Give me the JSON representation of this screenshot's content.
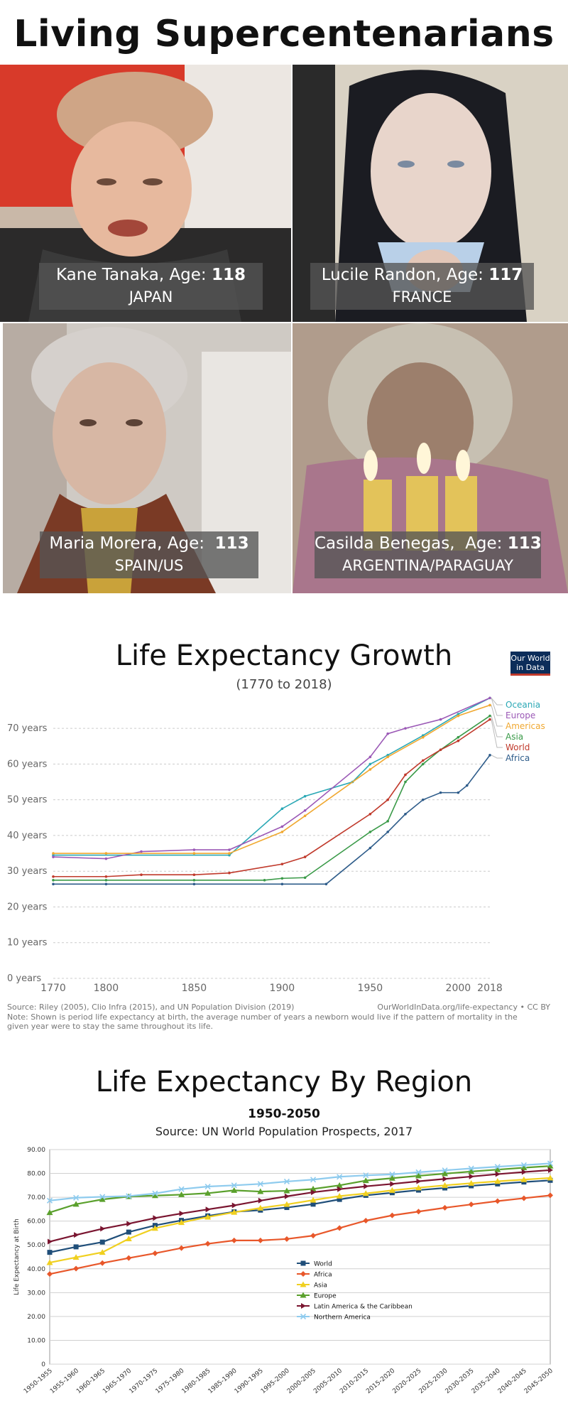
{
  "title": "Living Supercentenarians",
  "people": [
    {
      "name": "Kane Tanaka,",
      "age_label": "Age:",
      "age": "118",
      "country": "JAPAN"
    },
    {
      "name": "Lucile Randon,",
      "age_label": "Age:",
      "age": "117",
      "country": "FRANCE"
    },
    {
      "name": "Maria Morera, Age:",
      "age_label": "",
      "age": "113",
      "country": "SPAIN/US"
    },
    {
      "name": "Casilda Benegas,",
      "age_label": "Age:",
      "age": "113",
      "country": "ARGENTINA/PARAGUAY"
    }
  ],
  "chart1": {
    "title": "Life Expectancy Growth",
    "subtitle": "(1770 to 2018)",
    "logo_line1": "Our World",
    "logo_line2": "in Data",
    "source": "Source: Riley (2005), Clio Infra (2015), and UN Population Division (2019)",
    "credit": "OurWorldInData.org/life-expectancy • CC BY",
    "note": "Note: Shown is period life expectancy at birth, the average number of years a newborn would live if the pattern of mortality in the given year were to stay the same throughout its life."
  },
  "chart2": {
    "title": "Life Expectancy By Region",
    "subtitle": "1950-2050",
    "source": "Source: UN World Population Prospects, 2017"
  },
  "chart_data": [
    {
      "type": "line",
      "title": "Life Expectancy Growth",
      "subtitle": "(1770 to 2018)",
      "xlim": [
        1770,
        2018
      ],
      "ylim": [
        0,
        75
      ],
      "x_ticks": [
        "1770",
        "1800",
        "1850",
        "1900",
        "1950",
        "2000",
        "2018"
      ],
      "y_ticks": [
        "0 years",
        "10 years",
        "20 years",
        "30 years",
        "40 years",
        "50 years",
        "60 years",
        "70 years"
      ],
      "grid": true,
      "legend": "right",
      "series": [
        {
          "name": "Oceania",
          "color": "#2aa8b5",
          "points": [
            [
              1770,
              34.5
            ],
            [
              1870,
              34.5
            ],
            [
              1900,
              47.5
            ],
            [
              1913,
              51
            ],
            [
              1940,
              55
            ],
            [
              1950,
              60
            ],
            [
              1960,
              62.5
            ],
            [
              1980,
              68
            ],
            [
              2000,
              74
            ],
            [
              2018,
              78.5
            ]
          ]
        },
        {
          "name": "Europe",
          "color": "#9b59b6",
          "points": [
            [
              1770,
              34
            ],
            [
              1800,
              33.5
            ],
            [
              1820,
              35.5
            ],
            [
              1850,
              36
            ],
            [
              1870,
              36
            ],
            [
              1900,
              42.5
            ],
            [
              1913,
              47
            ],
            [
              1950,
              62
            ],
            [
              1960,
              68.5
            ],
            [
              1970,
              70
            ],
            [
              1990,
              72.5
            ],
            [
              2018,
              78.5
            ]
          ]
        },
        {
          "name": "Americas",
          "color": "#f0a830",
          "points": [
            [
              1770,
              35
            ],
            [
              1800,
              35
            ],
            [
              1850,
              35
            ],
            [
              1870,
              35
            ],
            [
              1900,
              41
            ],
            [
              1913,
              45.5
            ],
            [
              1950,
              58.5
            ],
            [
              1960,
              62
            ],
            [
              1980,
              67.5
            ],
            [
              2000,
              73.5
            ],
            [
              2018,
              76.5
            ]
          ]
        },
        {
          "name": "Asia",
          "color": "#3a9a48",
          "points": [
            [
              1770,
              27.5
            ],
            [
              1800,
              27.5
            ],
            [
              1850,
              27.5
            ],
            [
              1890,
              27.5
            ],
            [
              1900,
              28
            ],
            [
              1913,
              28.2
            ],
            [
              1950,
              41
            ],
            [
              1960,
              44
            ],
            [
              1970,
              55
            ],
            [
              1980,
              60
            ],
            [
              1990,
              64
            ],
            [
              2000,
              67.5
            ],
            [
              2018,
              73.5
            ]
          ]
        },
        {
          "name": "World",
          "color": "#c0392b",
          "points": [
            [
              1770,
              28.5
            ],
            [
              1800,
              28.5
            ],
            [
              1820,
              29
            ],
            [
              1850,
              29
            ],
            [
              1870,
              29.5
            ],
            [
              1900,
              32
            ],
            [
              1913,
              34
            ],
            [
              1950,
              46
            ],
            [
              1960,
              50
            ],
            [
              1970,
              57
            ],
            [
              1980,
              61
            ],
            [
              1990,
              64
            ],
            [
              2000,
              66.5
            ],
            [
              2018,
              72.5
            ]
          ]
        },
        {
          "name": "Africa",
          "color": "#2e5c8a",
          "points": [
            [
              1770,
              26.4
            ],
            [
              1800,
              26.4
            ],
            [
              1850,
              26.4
            ],
            [
              1900,
              26.4
            ],
            [
              1925,
              26.4
            ],
            [
              1950,
              36.5
            ],
            [
              1960,
              41
            ],
            [
              1970,
              46
            ],
            [
              1980,
              50
            ],
            [
              1990,
              52
            ],
            [
              2000,
              52
            ],
            [
              2005,
              54
            ],
            [
              2018,
              62.5
            ]
          ]
        }
      ]
    },
    {
      "type": "line",
      "title": "Life Expectancy By Region",
      "subtitle": "1950-2050",
      "ylabel": "Life Expectancy at Birth",
      "ylim": [
        0,
        90
      ],
      "y_ticks": [
        "0",
        "10.00",
        "20.00",
        "30.00",
        "40.00",
        "50.00",
        "60.00",
        "70.00",
        "80.00",
        "90.00"
      ],
      "categories": [
        "1950-1955",
        "1955-1960",
        "1960-1965",
        "1965-1970",
        "1970-1975",
        "1975-1980",
        "1980-1985",
        "1985-1990",
        "1990-1995",
        "1995-2000",
        "2000-2005",
        "2005-2010",
        "2010-2015",
        "2015-2020",
        "2020-2025",
        "2025-2030",
        "2030-2035",
        "2035-2040",
        "2040-2045",
        "2045-2050"
      ],
      "grid": true,
      "legend": "center",
      "series": [
        {
          "name": "World",
          "color": "#1f4e79",
          "marker": "square",
          "values": [
            46.9,
            49.2,
            51.2,
            55.4,
            58.2,
            60.3,
            62.2,
            63.9,
            64.6,
            65.7,
            67.1,
            69.1,
            70.8,
            71.9,
            73.0,
            73.9,
            74.8,
            75.6,
            76.4,
            77.1
          ]
        },
        {
          "name": "Africa",
          "color": "#e8572a",
          "marker": "diamond",
          "values": [
            37.8,
            40.1,
            42.4,
            44.5,
            46.5,
            48.7,
            50.5,
            51.9,
            51.9,
            52.5,
            53.9,
            57.1,
            60.2,
            62.4,
            64.0,
            65.6,
            67.0,
            68.4,
            69.6,
            70.8
          ]
        },
        {
          "name": "Asia",
          "color": "#f0d020",
          "marker": "triangle",
          "values": [
            42.6,
            44.8,
            46.9,
            52.6,
            57.0,
            59.4,
            61.7,
            63.7,
            65.5,
            67.0,
            68.8,
            70.5,
            71.6,
            72.9,
            74.0,
            75.0,
            75.9,
            76.7,
            77.4,
            78.1
          ]
        },
        {
          "name": "Europe",
          "color": "#5aa02c",
          "marker": "triangle",
          "values": [
            63.6,
            67.1,
            69.1,
            70.3,
            70.7,
            71.1,
            71.7,
            72.9,
            72.4,
            72.7,
            73.5,
            75.0,
            77.0,
            78.0,
            79.0,
            79.9,
            80.8,
            81.6,
            82.4,
            83.1
          ]
        },
        {
          "name": "Latin America & the Caribbean",
          "color": "#7a1530",
          "marker": "arrow",
          "values": [
            51.4,
            54.2,
            56.8,
            58.9,
            61.3,
            63.2,
            64.9,
            66.6,
            68.6,
            70.4,
            72.1,
            73.4,
            74.6,
            75.6,
            76.7,
            77.7,
            78.7,
            79.7,
            80.6,
            81.4
          ]
        },
        {
          "name": "Northern America",
          "color": "#8ecbee",
          "marker": "x",
          "values": [
            68.6,
            69.8,
            70.2,
            70.5,
            71.6,
            73.4,
            74.5,
            75.0,
            75.6,
            76.6,
            77.4,
            78.6,
            79.2,
            79.6,
            80.5,
            81.3,
            82.1,
            82.8,
            83.5,
            84.2
          ]
        }
      ]
    }
  ]
}
